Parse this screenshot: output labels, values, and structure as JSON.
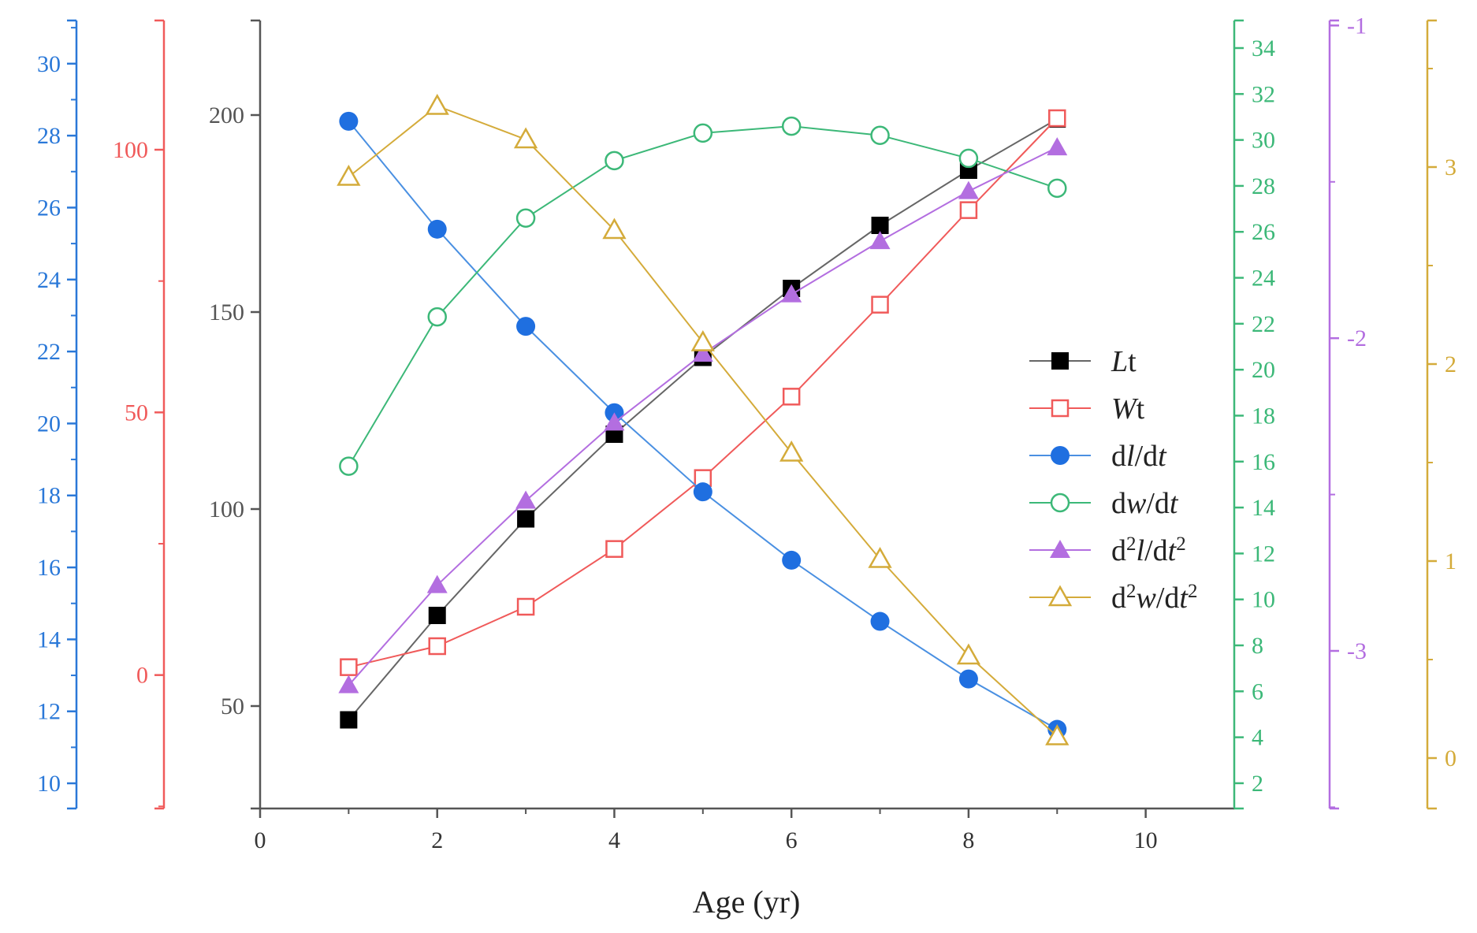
{
  "chart_data": {
    "type": "line",
    "xlabel": "Age (yr)",
    "x_axis": {
      "range": [
        0,
        11
      ],
      "ticks": [
        0,
        2,
        4,
        6,
        8,
        10
      ]
    },
    "axes": [
      {
        "id": "blue",
        "color": "#2a78d8",
        "range": [
          9.3,
          31.2
        ],
        "ticks": [
          10,
          12,
          14,
          16,
          18,
          20,
          22,
          24,
          26,
          28,
          30
        ],
        "minor": true
      },
      {
        "id": "red",
        "color": "#f05a5a",
        "range": [
          -25.4,
          124.6
        ],
        "ticks": [
          0,
          50,
          100
        ],
        "minor": true
      },
      {
        "id": "main",
        "color": "#555555",
        "range": [
          24,
          224
        ],
        "ticks": [
          50,
          100,
          150,
          200
        ],
        "minor": false
      },
      {
        "id": "green",
        "color": "#3cb878",
        "range": [
          0.9,
          35.2
        ],
        "ticks": [
          2,
          4,
          6,
          8,
          10,
          12,
          14,
          16,
          18,
          20,
          22,
          24,
          26,
          28,
          30,
          32,
          34
        ],
        "minor": false
      },
      {
        "id": "purple",
        "color": "#b36ee0",
        "range": [
          -3.504,
          -0.984
        ],
        "ticks": [
          -3,
          -2,
          -1
        ],
        "minor": true
      },
      {
        "id": "gold",
        "color": "#d4ab3a",
        "range": [
          -0.256,
          3.744
        ],
        "ticks": [
          0,
          1,
          2,
          3
        ],
        "minor": true
      }
    ],
    "x": [
      1,
      2,
      3,
      4,
      5,
      6,
      7,
      8,
      9
    ],
    "series": [
      {
        "label_main": "L",
        "label_tail": "t",
        "axis": "main",
        "color": "#000000",
        "line_color": "#666666",
        "marker": "square-filled",
        "values": [
          46.5,
          73,
          97.5,
          119,
          138.5,
          156,
          172,
          186,
          199
        ]
      },
      {
        "label_main": "W",
        "label_tail": "t",
        "axis": "red",
        "color": "#f05a5a",
        "line_color": "#f05a5a",
        "marker": "square-open",
        "values": [
          1.5,
          5.5,
          13,
          24,
          37.5,
          53,
          70.5,
          88.5,
          106
        ]
      },
      {
        "label_main": "d",
        "label_em1": "l",
        "label_mid": "/d",
        "label_em2": "t",
        "axis": "blue",
        "color": "#1f6fe0",
        "line_color": "#4a90e2",
        "marker": "circle-filled",
        "values": [
          28.4,
          25.4,
          22.7,
          20.3,
          18.1,
          16.2,
          14.5,
          12.9,
          11.5
        ]
      },
      {
        "label_main": "d",
        "label_em1": "w",
        "label_mid": "/d",
        "label_em2": "t",
        "axis": "green",
        "color": "#3cb878",
        "line_color": "#3cb878",
        "marker": "circle-open",
        "values": [
          15.8,
          22.3,
          26.6,
          29.1,
          30.3,
          30.6,
          30.2,
          29.2,
          27.9
        ]
      },
      {
        "label_main": "d",
        "label_sup1": "2",
        "label_em1": "l",
        "label_mid": "/d",
        "label_em2": "t",
        "label_sup2": "2",
        "axis": "purple",
        "color": "#b36ee0",
        "line_color": "#b36ee0",
        "marker": "triangle-filled",
        "values": [
          -3.11,
          -2.79,
          -2.52,
          -2.27,
          -2.05,
          -1.86,
          -1.69,
          -1.53,
          -1.39
        ]
      },
      {
        "label_main": "d",
        "label_sup1": "2",
        "label_em1": "w",
        "label_mid": "/d",
        "label_em2": "t",
        "label_sup2": "2",
        "axis": "gold",
        "color": "#d4ab3a",
        "line_color": "#d4ab3a",
        "marker": "triangle-open",
        "values": [
          2.95,
          3.31,
          3.14,
          2.68,
          2.11,
          1.55,
          1.01,
          0.52,
          0.11
        ]
      }
    ]
  }
}
